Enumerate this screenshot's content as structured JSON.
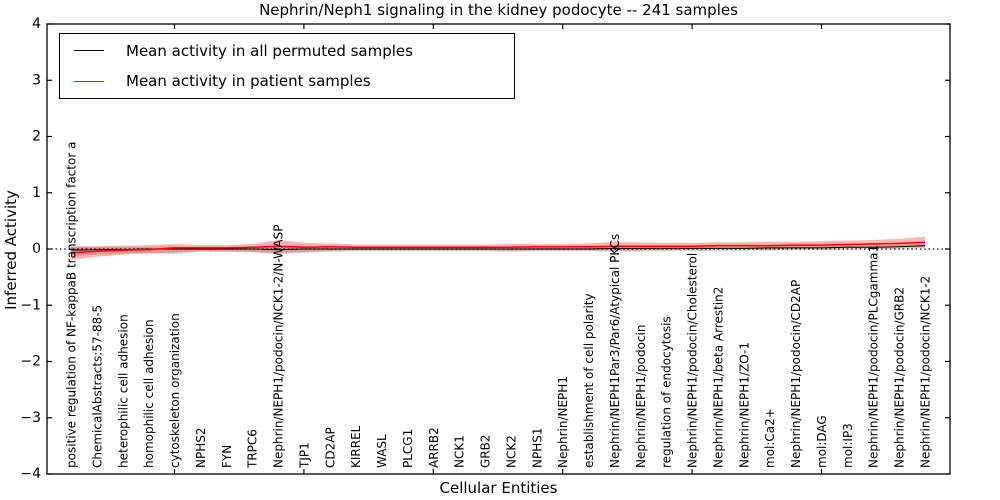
{
  "title": "Nephrin/Neph1 signaling in the kidney podocyte -- 241 samples",
  "axes": {
    "ylabel": "Inferred Activity",
    "xlabel": "Cellular Entities",
    "ytick_labels": [
      "4",
      "3",
      "2",
      "1",
      "0",
      "−1",
      "−2",
      "−3",
      "−4"
    ],
    "ytick_values": [
      4,
      3,
      2,
      1,
      0,
      -1,
      -2,
      -3,
      -4
    ]
  },
  "legend": {
    "items": [
      {
        "label": "Mean activity in all permuted samples",
        "color": "#000000"
      },
      {
        "label": "Mean activity in patient samples",
        "color": "#ff0000"
      }
    ]
  },
  "chart_data": {
    "type": "line",
    "title": "Nephrin/Neph1 signaling in the kidney podocyte -- 241 samples",
    "xlabel": "Cellular Entities",
    "ylabel": "Inferred Activity",
    "ylim": [
      -4,
      4
    ],
    "grid": false,
    "zero_line": true,
    "legend_position": "upper left",
    "categories": [
      "positive regulation of NF-kappaB transcription factor a",
      "ChemicalAbstracts:57-88-5",
      "heterophilic cell adhesion",
      "homophilic cell adhesion",
      "cytoskeleton organization",
      "NPHS2",
      "FYN",
      "TRPC6",
      "Nephrin/NEPH1/podocin/NCK1-2/N-WASP",
      "TJP1",
      "CD2AP",
      "KIRREL",
      "WASL",
      "PLCG1",
      "ARRB2",
      "NCK1",
      "GRB2",
      "NCK2",
      "NPHS1",
      "Nephrin/NEPH1",
      "establishment of cell polarity",
      "Nephrin/NEPH1Par3/Par6/Atypical PKCs",
      "Nephrin/NEPH1/podocin",
      "regulation of endocytosis",
      "Nephrin/NEPH1/podocin/Cholesterol",
      "Nephrin/NEPH1/beta Arrestin2",
      "Nephrin/NEPH1/ZO-1",
      "mol:Ca2+",
      "Nephrin/NEPH1/podocin/CD2AP",
      "mol:DAG",
      "mol:IP3",
      "Nephrin/NEPH1/podocin/PLCgamma1",
      "Nephrin/NEPH1/podocin/GRB2",
      "Nephrin/NEPH1/podocin/NCK1-2"
    ],
    "series": [
      {
        "name": "Mean activity in all permuted samples",
        "color": "#000000",
        "line_width": 1,
        "band_color": "rgba(130,130,130,0.35)",
        "values": [
          -0.02,
          -0.01,
          -0.01,
          0,
          0,
          0,
          0,
          0,
          -0.01,
          0,
          0,
          0,
          0,
          0,
          0,
          0,
          0,
          0,
          0,
          0,
          0,
          0.01,
          0.01,
          0.01,
          0.01,
          0.01,
          0.01,
          0.02,
          0.02,
          0.02,
          0.03,
          0.03,
          0.04,
          0.06
        ],
        "band_upper": [
          0.04,
          0.04,
          0.04,
          0.04,
          0.05,
          0.04,
          0.04,
          0.04,
          0.06,
          0.05,
          0.04,
          0.04,
          0.04,
          0.04,
          0.04,
          0.04,
          0.04,
          0.04,
          0.04,
          0.04,
          0.04,
          0.05,
          0.05,
          0.05,
          0.05,
          0.05,
          0.05,
          0.06,
          0.06,
          0.06,
          0.07,
          0.07,
          0.08,
          0.1
        ],
        "band_lower": [
          -0.13,
          -0.1,
          -0.08,
          -0.07,
          -0.09,
          -0.05,
          -0.05,
          -0.06,
          -0.09,
          -0.07,
          -0.05,
          -0.04,
          -0.04,
          -0.04,
          -0.04,
          -0.04,
          -0.04,
          -0.05,
          -0.04,
          -0.04,
          -0.04,
          -0.05,
          -0.05,
          -0.04,
          -0.04,
          -0.03,
          -0.03,
          -0.03,
          -0.02,
          -0.02,
          -0.01,
          0,
          0,
          0.02
        ]
      },
      {
        "name": "Mean activity in patient samples",
        "color": "#ff0000",
        "line_width": 1.5,
        "band_color": "rgba(255,40,40,0.35)",
        "values": [
          -0.07,
          -0.04,
          -0.02,
          -0.01,
          0.02,
          0.02,
          0.02,
          0.03,
          0.05,
          0.03,
          0.04,
          0.03,
          0.03,
          0.03,
          0.03,
          0.03,
          0.03,
          0.03,
          0.04,
          0.04,
          0.04,
          0.05,
          0.05,
          0.05,
          0.05,
          0.06,
          0.06,
          0.06,
          0.07,
          0.07,
          0.08,
          0.09,
          0.1,
          0.12
        ],
        "band_upper": [
          0.05,
          0.05,
          0.06,
          0.07,
          0.09,
          0.07,
          0.07,
          0.09,
          0.16,
          0.11,
          0.1,
          0.08,
          0.08,
          0.08,
          0.08,
          0.08,
          0.08,
          0.09,
          0.09,
          0.09,
          0.1,
          0.13,
          0.12,
          0.11,
          0.11,
          0.12,
          0.12,
          0.13,
          0.13,
          0.14,
          0.15,
          0.16,
          0.18,
          0.22
        ],
        "band_lower": [
          -0.19,
          -0.14,
          -0.1,
          -0.08,
          -0.06,
          -0.04,
          -0.04,
          -0.05,
          -0.07,
          -0.05,
          -0.03,
          -0.02,
          -0.02,
          -0.02,
          -0.02,
          -0.02,
          -0.02,
          -0.03,
          -0.02,
          -0.02,
          -0.02,
          -0.03,
          -0.02,
          -0.01,
          -0.01,
          0,
          0,
          -0.01,
          0.01,
          0.01,
          0.02,
          0.02,
          0.03,
          0.03
        ]
      }
    ]
  }
}
